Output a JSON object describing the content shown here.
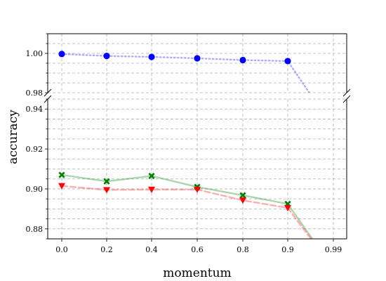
{
  "chart_data": {
    "type": "line",
    "xlabel": "momentum",
    "ylabel": "accuracy",
    "categories": [
      "0.0",
      "0.2",
      "0.4",
      "0.6",
      "0.8",
      "0.9",
      "0.99"
    ],
    "broken_y_axis": true,
    "upper_ylim": [
      0.98,
      1.01
    ],
    "lower_ylim": [
      0.875,
      0.945
    ],
    "upper_yticks": [
      0.98,
      1.0
    ],
    "lower_yticks": [
      0.88,
      0.9,
      0.92,
      0.94
    ],
    "grid": true,
    "series": [
      {
        "color": "#0000ff",
        "line_style": "dotted",
        "marker": "circle",
        "values": [
          0.9997,
          0.9987,
          0.9982,
          0.9975,
          0.9966,
          0.9961,
          0.962
        ]
      },
      {
        "color": "#008000",
        "line_style": "solid",
        "marker": "X",
        "values": [
          0.907,
          0.9038,
          0.9065,
          0.901,
          0.8968,
          0.8925,
          0.86
        ]
      },
      {
        "color": "#ff0000",
        "line_style": "dashed",
        "marker": "triangle-down",
        "values": [
          0.9015,
          0.8995,
          0.8997,
          0.8997,
          0.8943,
          0.8905,
          0.86
        ]
      }
    ]
  }
}
